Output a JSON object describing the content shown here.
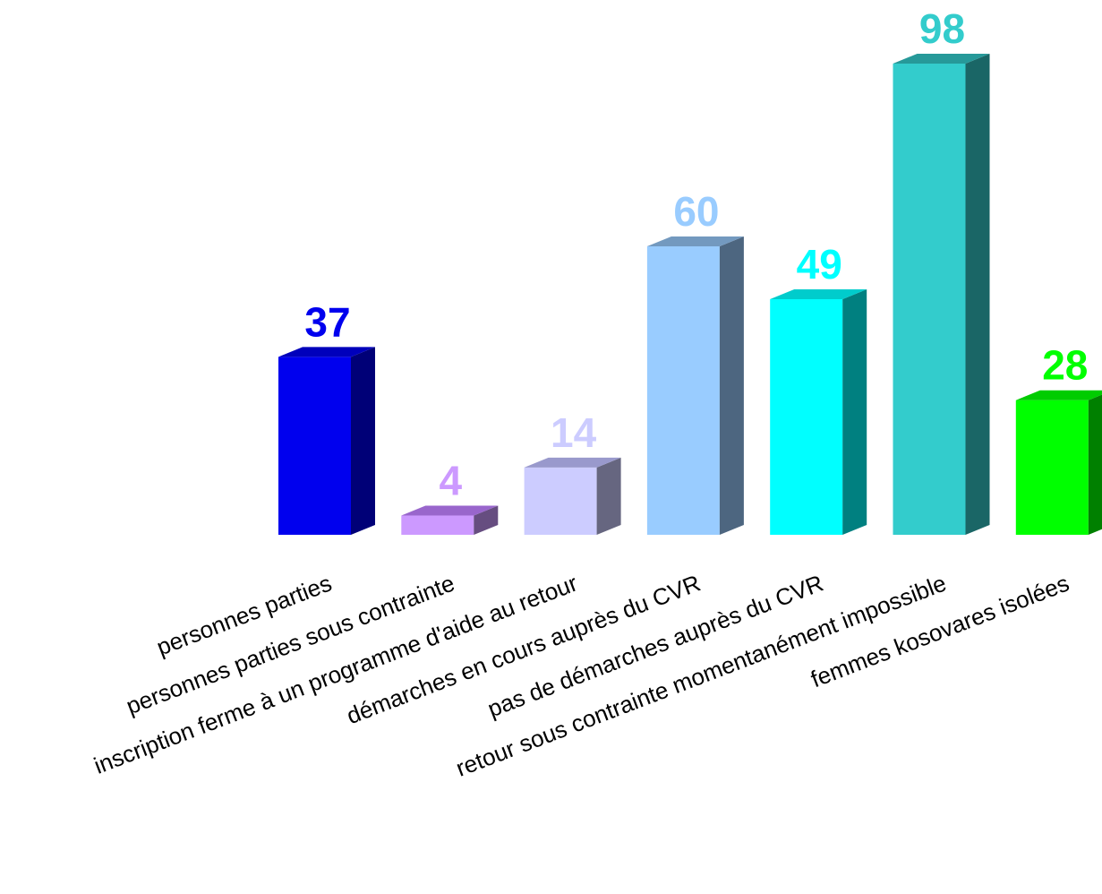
{
  "chart_data": {
    "type": "bar",
    "style": "3d-column",
    "categories": [
      "personnes parties",
      "personnes parties sous contrainte",
      "inscription ferme à un programme d'aide au retour",
      "démarches en cours auprès du CVR",
      "pas de démarches auprès du CVR",
      "retour sous contrainte momentanément impossible",
      "femmes kosovares isolées"
    ],
    "values": [
      37,
      4,
      14,
      60,
      49,
      98,
      28
    ],
    "colors": [
      {
        "front": "#0000ee",
        "top": "#0000bb",
        "side": "#000077",
        "label": "#0000ee"
      },
      {
        "front": "#cc99ff",
        "top": "#9966cc",
        "side": "#664d80",
        "label": "#cc99ff"
      },
      {
        "front": "#ccccff",
        "top": "#9999cc",
        "side": "#666680",
        "label": "#ccccff"
      },
      {
        "front": "#99ccff",
        "top": "#7399bf",
        "side": "#4d6680",
        "label": "#99ccff"
      },
      {
        "front": "#00ffff",
        "top": "#00cccc",
        "side": "#008080",
        "label": "#00ffff"
      },
      {
        "front": "#33cccc",
        "top": "#269999",
        "side": "#1a6666",
        "label": "#33cccc"
      },
      {
        "front": "#00ff00",
        "top": "#00cc00",
        "side": "#008000",
        "label": "#00ff00"
      }
    ],
    "title": "",
    "xlabel": "",
    "ylabel": "",
    "ylim": [
      0,
      98
    ],
    "grid": false,
    "legend": "none"
  }
}
